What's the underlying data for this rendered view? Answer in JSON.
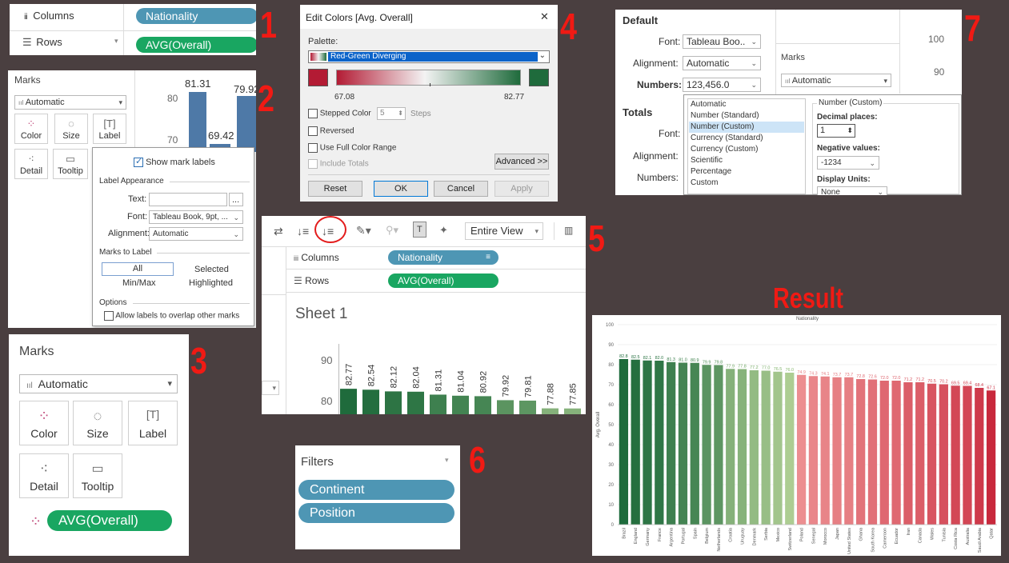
{
  "steps": [
    "1",
    "2",
    "3",
    "4",
    "5",
    "6",
    "7"
  ],
  "result_label": "Result",
  "panel1": {
    "columns_label": "Columns",
    "rows_label": "Rows",
    "columns_pill": "Nationality",
    "rows_pill": "AVG(Overall)"
  },
  "panel2": {
    "title": "Marks",
    "mark_type": "Automatic",
    "buttons": [
      "Color",
      "Size",
      "Label",
      "Detail",
      "Tooltip"
    ],
    "bar_labels": [
      "81.31",
      "79.92",
      "69.42"
    ],
    "axis_ticks": [
      "80",
      "70"
    ],
    "popup": {
      "show_labels": "Show mark labels",
      "section_appearance": "Label Appearance",
      "text_label": "Text:",
      "text_btn": "...",
      "font_label": "Font:",
      "font_value": "Tableau Book, 9pt, ...",
      "align_label": "Alignment:",
      "align_value": "Automatic",
      "section_marks": "Marks to Label",
      "opt_all": "All",
      "opt_selected": "Selected",
      "opt_minmax": "Min/Max",
      "opt_highlighted": "Highlighted",
      "section_options": "Options",
      "allow_overlap": "Allow labels to overlap other marks"
    }
  },
  "panel3": {
    "title": "Marks",
    "mark_type": "Automatic",
    "buttons": [
      "Color",
      "Size",
      "Label",
      "Detail",
      "Tooltip"
    ],
    "pill": "AVG(Overall)"
  },
  "panel4": {
    "title": "Edit Colors [Avg. Overall]",
    "close": "✕",
    "palette_label": "Palette:",
    "palette_value": "Red-Green Diverging",
    "min_value": "67.08",
    "max_value": "82.77",
    "stepped_label": "Stepped Color",
    "steps_value": "5",
    "steps_label": "Steps",
    "reversed_label": "Reversed",
    "full_range_label": "Use Full Color Range",
    "include_totals_label": "Include Totals",
    "advanced_btn": "Advanced >>",
    "reset_btn": "Reset",
    "ok_btn": "OK",
    "cancel_btn": "Cancel",
    "apply_btn": "Apply",
    "colors": {
      "red": "#b31b34",
      "green": "#1f6b3c"
    }
  },
  "panel5": {
    "view_select": "Entire View",
    "columns_label": "Columns",
    "rows_label": "Rows",
    "columns_pill": "Nationality",
    "rows_pill": "AVG(Overall)",
    "sheet_title": "Sheet 1",
    "axis_ticks": [
      "90",
      "80"
    ],
    "bar_values": [
      "82.77",
      "82.54",
      "82.12",
      "82.04",
      "81.31",
      "81.04",
      "80.92",
      "79.92",
      "79.81",
      "77.88",
      "77.85"
    ]
  },
  "panel6": {
    "title": "Filters",
    "filters": [
      "Continent",
      "Position"
    ]
  },
  "panel7": {
    "default_title": "Default",
    "font_label": "Font:",
    "font_value": "Tableau Boo..",
    "align_label": "Alignment:",
    "align_value": "Automatic",
    "numbers_label": "Numbers:",
    "numbers_value": "123,456.0",
    "marks_label": "Marks",
    "marks_type": "Automatic",
    "axis_ticks": [
      "100",
      "90"
    ],
    "totals_title": "Totals",
    "totals_font": "Font:",
    "totals_align": "Alignment:",
    "totals_numbers": "Numbers:",
    "format_list": [
      "Automatic",
      "Number (Standard)",
      "Number (Custom)",
      "Currency (Standard)",
      "Currency (Custom)",
      "Scientific",
      "Percentage",
      "Custom"
    ],
    "selected_format": "Number (Custom)",
    "custom_group": "Number (Custom)",
    "decimal_label": "Decimal places:",
    "decimal_value": "1",
    "negative_label": "Negative values:",
    "negative_value": "-1234",
    "units_label": "Display Units:",
    "units_value": "None"
  },
  "chart_data": {
    "type": "bar",
    "title": "Nationality",
    "ylabel": "Avg. Overall",
    "ylim": [
      0,
      100
    ],
    "yticks": [
      0,
      10,
      20,
      30,
      40,
      50,
      60,
      70,
      80,
      90,
      100
    ],
    "categories": [
      "Brazil",
      "England",
      "Germany",
      "France",
      "Argentina",
      "Portugal",
      "Spain",
      "Belgium",
      "Netherlands",
      "Croatia",
      "Uruguay",
      "Denmark",
      "Serbia",
      "Mexico",
      "Switzerland",
      "Poland",
      "Senegal",
      "Morocco",
      "Japan",
      "United States",
      "Ghana",
      "South Korea",
      "Cameroon",
      "Ecuador",
      "Iran",
      "Canada",
      "Wales",
      "Tunisia",
      "Costa Rica",
      "Australia",
      "Saudi Arabia",
      "Qatar"
    ],
    "values": [
      82.8,
      82.5,
      82.1,
      82.0,
      81.3,
      81.0,
      80.9,
      79.9,
      79.8,
      77.9,
      77.8,
      77.2,
      77.0,
      76.5,
      76.0,
      74.9,
      74.3,
      74.1,
      73.7,
      73.7,
      72.8,
      72.6,
      72.0,
      72.0,
      71.2,
      71.2,
      70.5,
      70.2,
      69.5,
      69.4,
      68.4,
      67.1
    ],
    "data_labels": [
      "82.8",
      "82.5",
      "82.1",
      "82.0",
      "81.3",
      "81.0",
      "80.9",
      "79.9",
      "79.8",
      "77.9",
      "77.8",
      "77.2",
      "77.0",
      "76.5",
      "76.0",
      "74.9",
      "74.3",
      "74.1",
      "73.7",
      "73.7",
      "72.8",
      "72.6",
      "72.0",
      "72.0",
      "71.2",
      "71.2",
      "70.5",
      "70.2",
      "69.5",
      "69.4",
      "68.4",
      "67.1"
    ],
    "color_min": 67.08,
    "color_max": 82.77,
    "grid": true
  }
}
